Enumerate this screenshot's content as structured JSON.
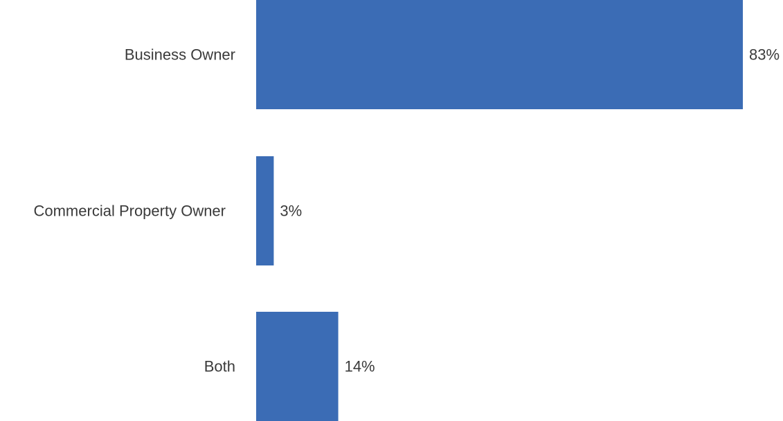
{
  "chart_data": {
    "type": "bar",
    "orientation": "horizontal",
    "categories": [
      "Business Owner",
      "Commercial Property Owner",
      "Both"
    ],
    "values": [
      83,
      3,
      14
    ],
    "value_labels": [
      "83%",
      "3%",
      "14%"
    ],
    "unit": "%",
    "xlim": [
      0,
      100
    ],
    "grid": false,
    "legend": "none",
    "colors": {
      "bar": "#3B6CB5"
    }
  }
}
